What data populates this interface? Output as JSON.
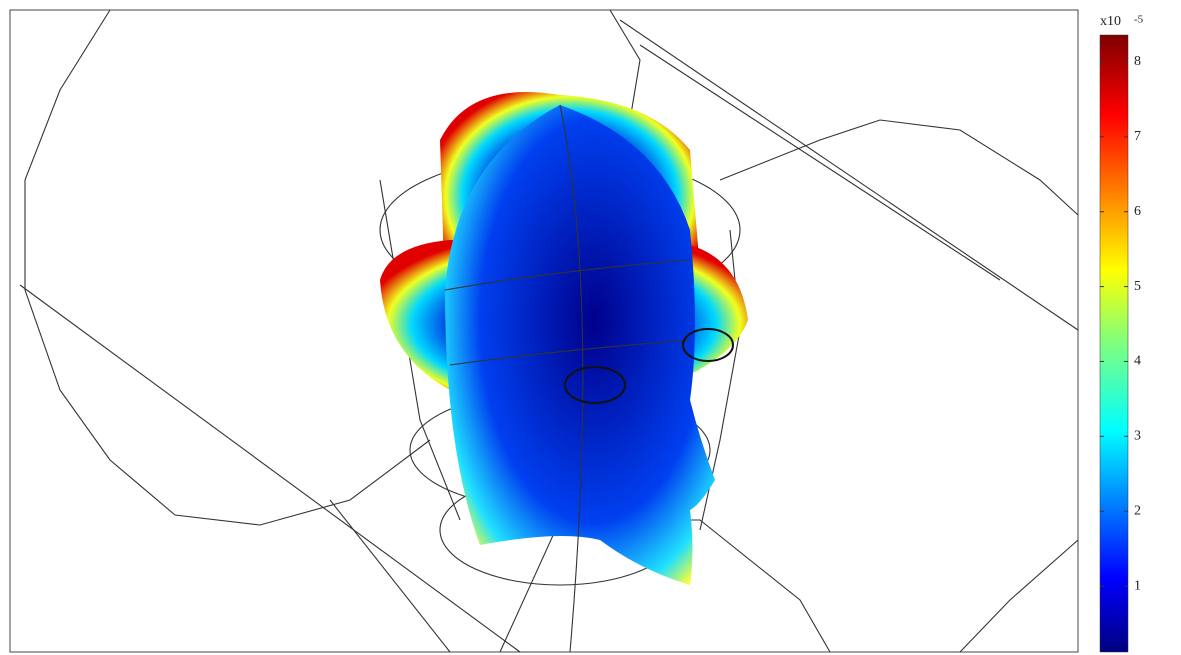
{
  "colorbar": {
    "label": "x10",
    "exponent": "-5",
    "lim": [
      0.12,
      8.36
    ],
    "ticks": [
      1,
      2,
      3,
      4,
      5,
      6,
      7,
      8
    ]
  }
}
